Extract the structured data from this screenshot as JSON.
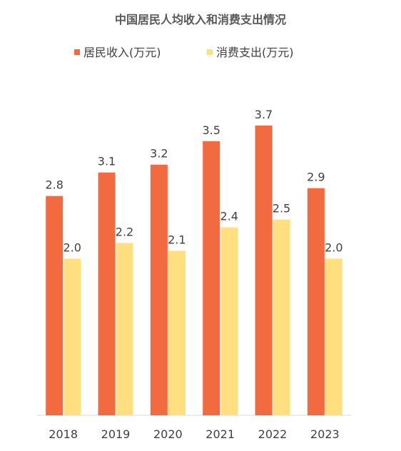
{
  "chart_data": {
    "type": "bar",
    "title": "中国居民人均收入和消费支出情况",
    "categories": [
      "2018",
      "2019",
      "2020",
      "2021",
      "2022",
      "2023"
    ],
    "series": [
      {
        "name": "居民收入(万元)",
        "values": [
          2.8,
          3.1,
          3.2,
          3.5,
          3.7,
          2.9
        ],
        "labels": [
          "2.8",
          "3.1",
          "3.2",
          "3.5",
          "3.7",
          "2.9"
        ],
        "color": "#F26A3F"
      },
      {
        "name": "消费支出(万元)",
        "values": [
          2.0,
          2.2,
          2.1,
          2.4,
          2.5,
          2.0
        ],
        "labels": [
          "2.0",
          "2.2",
          "2.1",
          "2.4",
          "2.5",
          "2.0"
        ],
        "color": "#FFDF80"
      }
    ],
    "xlabel": "",
    "ylabel": "",
    "ylim": [
      0,
      4.3
    ],
    "grid": false,
    "legend": "top",
    "axis_color": "#D9D9D9"
  }
}
